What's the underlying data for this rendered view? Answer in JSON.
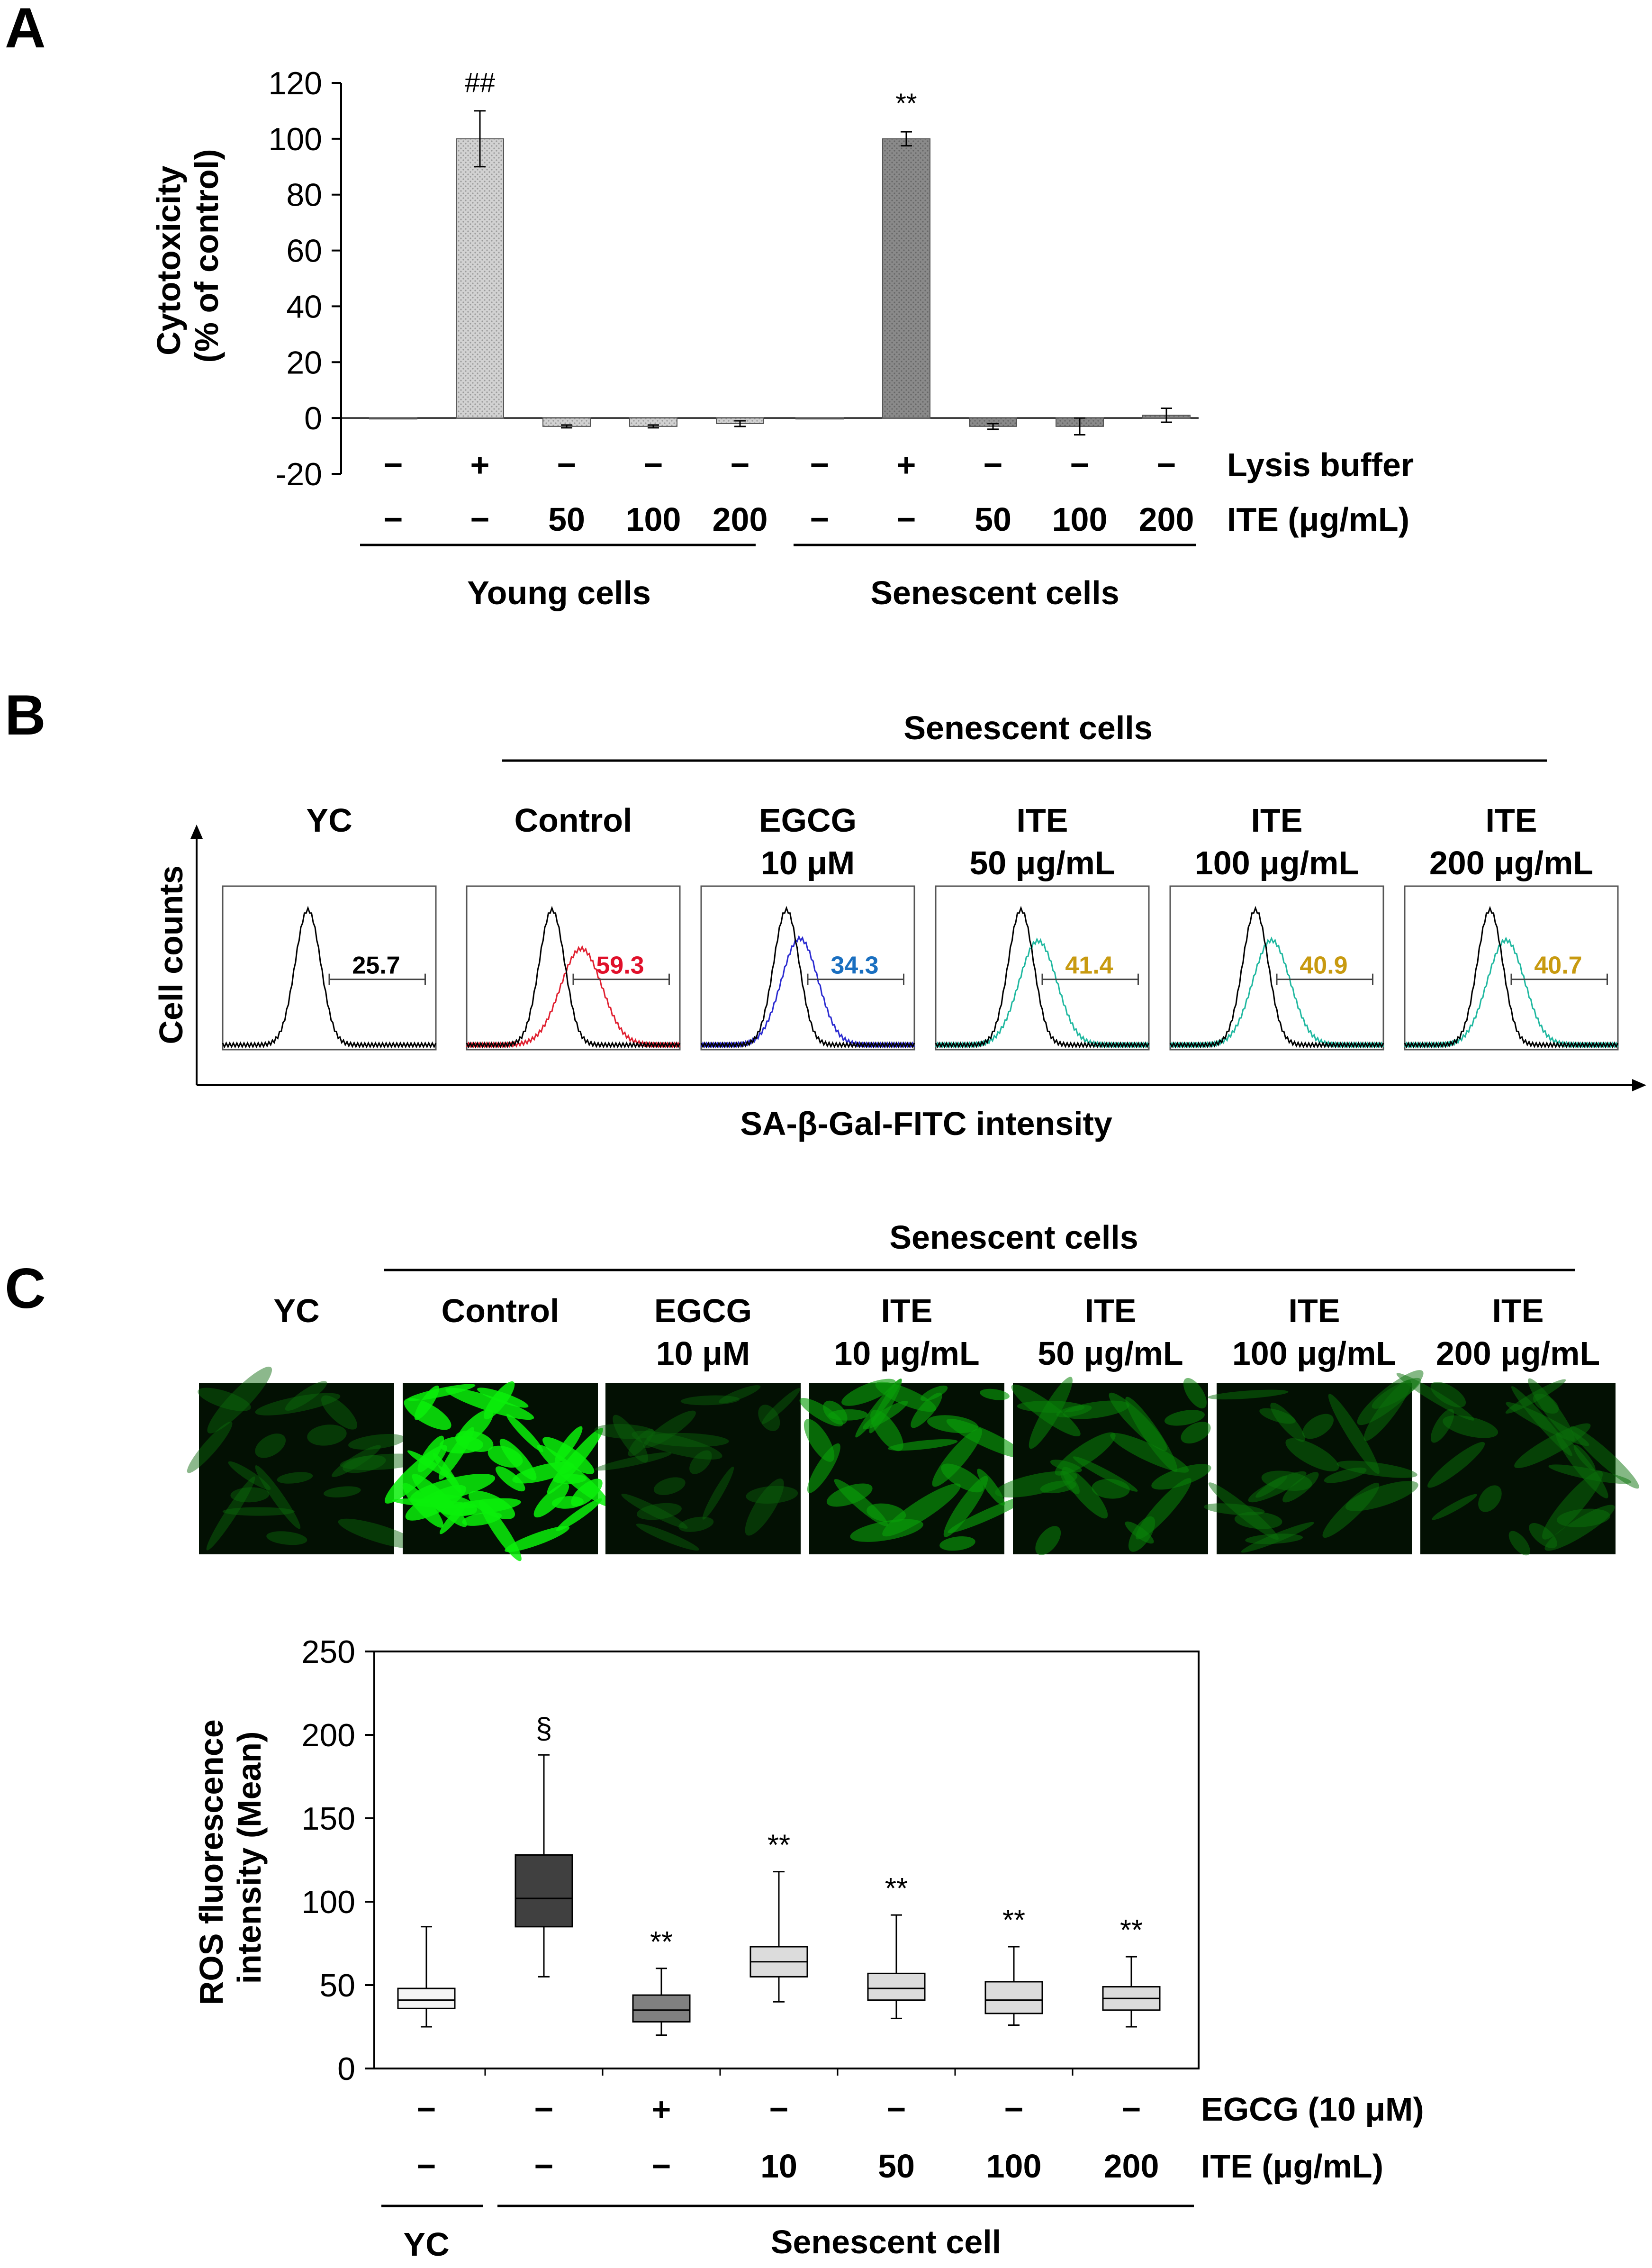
{
  "panels": {
    "A": "A",
    "B": "B",
    "C": "C"
  },
  "chart_data": [
    {
      "panel": "A",
      "type": "bar",
      "ylabel_line1": "Cytotoxicity",
      "ylabel_line2": "(% of control)",
      "ylim": [
        -20,
        120
      ],
      "yticks": [
        "120",
        "100",
        "80",
        "60",
        "40",
        "20",
        "0",
        "-20"
      ],
      "ytick_values": [
        120,
        100,
        80,
        60,
        40,
        20,
        0,
        -20
      ],
      "groups": [
        {
          "name": "Young cells",
          "color": "#c8c8c8",
          "values": [
            0,
            100,
            -3,
            -3,
            -2
          ],
          "errors": [
            0,
            10,
            0.5,
            0.5,
            1
          ]
        },
        {
          "name": "Senescent cells",
          "color": "#808080",
          "values": [
            0,
            100,
            -3,
            -3,
            1
          ],
          "errors": [
            0,
            2.5,
            1,
            3,
            2.5
          ]
        }
      ],
      "annotations": [
        "##",
        "**"
      ],
      "row_labels": [
        "Lysis buffer",
        "ITE (μg/mL)"
      ],
      "lysis_row": [
        "−",
        "+",
        "−",
        "−",
        "−",
        "−",
        "+",
        "−",
        "−",
        "−"
      ],
      "ite_row": [
        "−",
        "−",
        "50",
        "100",
        "200",
        "−",
        "−",
        "50",
        "100",
        "200"
      ]
    },
    {
      "panel": "B",
      "type": "histogram",
      "group_label": "Senescent cells",
      "ylabel": "Cell counts",
      "xlabel": "SA-β-Gal-FITC intensity",
      "conditions": [
        {
          "line1": "YC",
          "line2": "",
          "value": "25.7",
          "value_color": "#000000",
          "trace_color": "#000000",
          "shift": 0
        },
        {
          "line1": "Control",
          "line2": "",
          "value": "59.3",
          "value_color": "#e0102a",
          "trace_color": "#e02030",
          "shift": 0.55
        },
        {
          "line1": "EGCG",
          "line2": "10 μM",
          "value": "34.3",
          "value_color": "#1a6fc0",
          "trace_color": "#2a2ad0",
          "shift": 0.25
        },
        {
          "line1": "ITE",
          "line2": "50 μg/mL",
          "value": "41.4",
          "value_color": "#c89a10",
          "trace_color": "#20b8a0",
          "shift": 0.32
        },
        {
          "line1": "ITE",
          "line2": "100 μg/mL",
          "value": "40.9",
          "value_color": "#c89a10",
          "trace_color": "#20b8a0",
          "shift": 0.3
        },
        {
          "line1": "ITE",
          "line2": "200 μg/mL",
          "value": "40.7",
          "value_color": "#c89a10",
          "trace_color": "#20b8a0",
          "shift": 0.3
        }
      ]
    },
    {
      "panel": "C-images",
      "type": "image-strip",
      "group_label": "Senescent cells",
      "conditions": [
        {
          "line1": "YC",
          "line2": "",
          "brightness": 0.25
        },
        {
          "line1": "Control",
          "line2": "",
          "brightness": 1.0
        },
        {
          "line1": "EGCG",
          "line2": "10 μM",
          "brightness": 0.22
        },
        {
          "line1": "ITE",
          "line2": "10 μg/mL",
          "brightness": 0.55
        },
        {
          "line1": "ITE",
          "line2": "50 μg/mL",
          "brightness": 0.4
        },
        {
          "line1": "ITE",
          "line2": "100 μg/mL",
          "brightness": 0.3
        },
        {
          "line1": "ITE",
          "line2": "200 μg/mL",
          "brightness": 0.3
        }
      ]
    },
    {
      "panel": "C",
      "type": "box",
      "ylabel_line1": "ROS fluorescence",
      "ylabel_line2": "intensity (Mean)",
      "ylim": [
        0,
        250
      ],
      "yticks": [
        "250",
        "200",
        "150",
        "100",
        "50",
        "0"
      ],
      "ytick_values": [
        250,
        200,
        150,
        100,
        50,
        0
      ],
      "boxes": [
        {
          "min": 25,
          "q1": 36,
          "median": 41,
          "q3": 48,
          "max": 85,
          "fill": "#f4f4f4",
          "mark": ""
        },
        {
          "min": 55,
          "q1": 85,
          "median": 102,
          "q3": 128,
          "max": 188,
          "fill": "#404040",
          "mark": "§"
        },
        {
          "min": 20,
          "q1": 28,
          "median": 35,
          "q3": 44,
          "max": 60,
          "fill": "#808080",
          "mark": "**"
        },
        {
          "min": 40,
          "q1": 55,
          "median": 64,
          "q3": 73,
          "max": 118,
          "fill": "#dcdcdc",
          "mark": "**"
        },
        {
          "min": 30,
          "q1": 41,
          "median": 48,
          "q3": 57,
          "max": 92,
          "fill": "#dcdcdc",
          "mark": "**"
        },
        {
          "min": 26,
          "q1": 33,
          "median": 41,
          "q3": 52,
          "max": 73,
          "fill": "#dcdcdc",
          "mark": "**"
        },
        {
          "min": 25,
          "q1": 35,
          "median": 42,
          "q3": 49,
          "max": 67,
          "fill": "#dcdcdc",
          "mark": "**"
        }
      ],
      "row_labels": [
        "EGCG (10 μM)",
        "ITE (μg/mL)"
      ],
      "egcg_row": [
        "−",
        "−",
        "+",
        "−",
        "−",
        "−",
        "−"
      ],
      "ite_row": [
        "−",
        "−",
        "−",
        "10",
        "50",
        "100",
        "200"
      ],
      "group_labels": [
        "YC",
        "Senescent cell"
      ]
    }
  ]
}
